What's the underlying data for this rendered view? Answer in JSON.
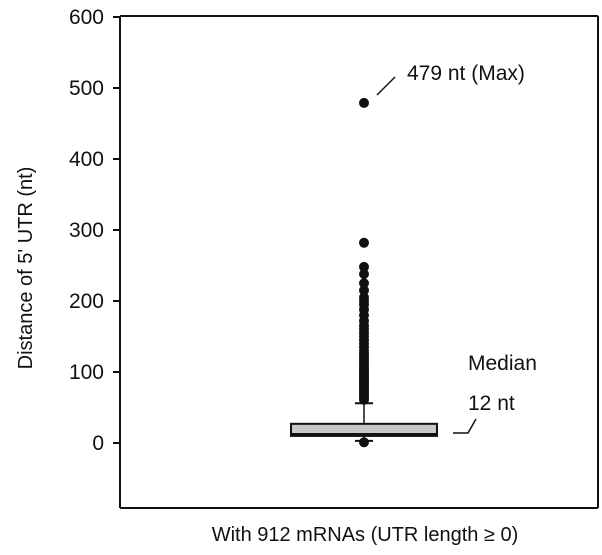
{
  "chart_data": {
    "type": "box",
    "title": "",
    "xlabel": "With 912 mRNAs (UTR length ≥ 0)",
    "ylabel": "Distance of 5' UTR (nt)",
    "ylim": [
      -90,
      600
    ],
    "yticks": [
      0,
      100,
      200,
      300,
      400,
      500,
      600
    ],
    "grid": false,
    "legend": "none",
    "box": {
      "min": 3,
      "q1": 10,
      "median": 12,
      "q3": 27,
      "whisker_high": 56,
      "box_color": "#c8c8c8",
      "outliers": [
        1,
        61,
        64,
        67,
        70,
        73,
        76,
        79,
        82,
        85,
        88,
        91,
        94,
        97,
        100,
        103,
        106,
        110,
        114,
        118,
        122,
        126,
        130,
        135,
        140,
        145,
        150,
        155,
        160,
        165,
        172,
        180,
        188,
        195,
        200,
        205,
        215,
        225,
        238,
        248,
        282,
        479
      ]
    },
    "annotations": [
      {
        "id": "max",
        "text": "479 nt (Max)",
        "value": 479
      },
      {
        "id": "median_title",
        "text": "Median",
        "value": 12
      },
      {
        "id": "median_value",
        "text": "12 nt",
        "value": 12
      }
    ]
  }
}
